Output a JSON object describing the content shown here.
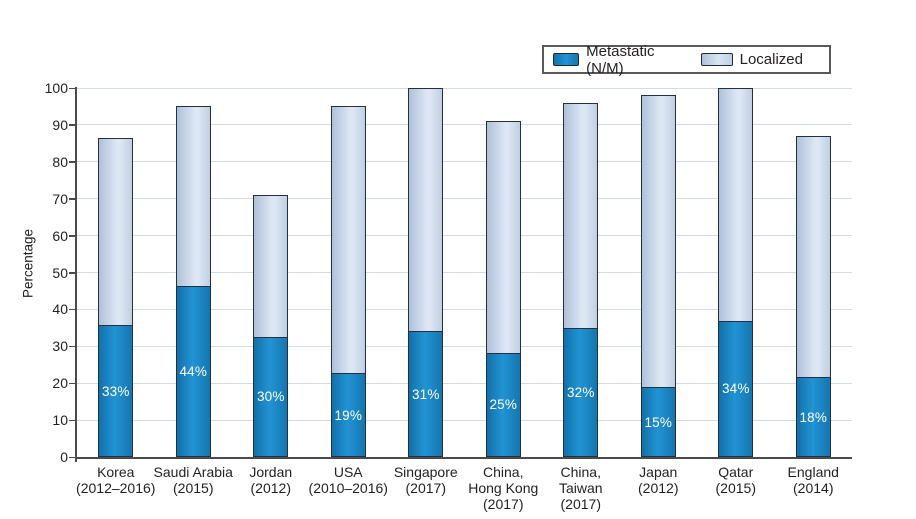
{
  "colors": {
    "metastatic": "#1b85c3",
    "metastatic_gradient": [
      "#1271ab",
      "#2293d3",
      "#1576b0"
    ],
    "localized": "#d6e1f0",
    "localized_gradient": [
      "#aec1da",
      "#dbe5f3",
      "#bfcfe3"
    ],
    "bar_border": "#25303a",
    "gridline": "#d3dce2",
    "axis": "#4b4b4b",
    "text": "#231f20",
    "bar_label_text": "#ffffff"
  },
  "legend": {
    "items": [
      {
        "label": "Metastatic (N/M)",
        "series_key": "metastatic"
      },
      {
        "label": "Localized",
        "series_key": "localized"
      }
    ]
  },
  "chart_data": {
    "type": "bar",
    "stacked": true,
    "orientation": "vertical",
    "title": "",
    "xlabel": "",
    "ylabel": "Percentage",
    "ylim": [
      0,
      100
    ],
    "ytick_step": 10,
    "grid": true,
    "legend_position": "top-right",
    "categories": [
      "Korea\n(2012–2016)",
      "Saudi Arabia\n(2015)",
      "Jordan\n(2012)",
      "USA\n(2010–2016)",
      "Singapore\n(2017)",
      "China,\nHong Kong\n(2017)",
      "China,\nTaiwan\n(2017)",
      "Japan\n(2012)",
      "Qatar\n(2015)",
      "England\n(2014)"
    ],
    "series": [
      {
        "name": "Metastatic (N/M)",
        "values": [
          33,
          44,
          30,
          19,
          31,
          25,
          32,
          15,
          34,
          18
        ],
        "data_labels": [
          "33%",
          "44%",
          "30%",
          "19%",
          "31%",
          "25%",
          "32%",
          "15%",
          "34%",
          "18%"
        ]
      },
      {
        "name": "Localized",
        "values": [
          53.5,
          51,
          41,
          76,
          69,
          66,
          64,
          83,
          66,
          69
        ]
      }
    ],
    "stack_totals": [
      86.5,
      95,
      71,
      95,
      100,
      91,
      96,
      98,
      100,
      87
    ]
  }
}
